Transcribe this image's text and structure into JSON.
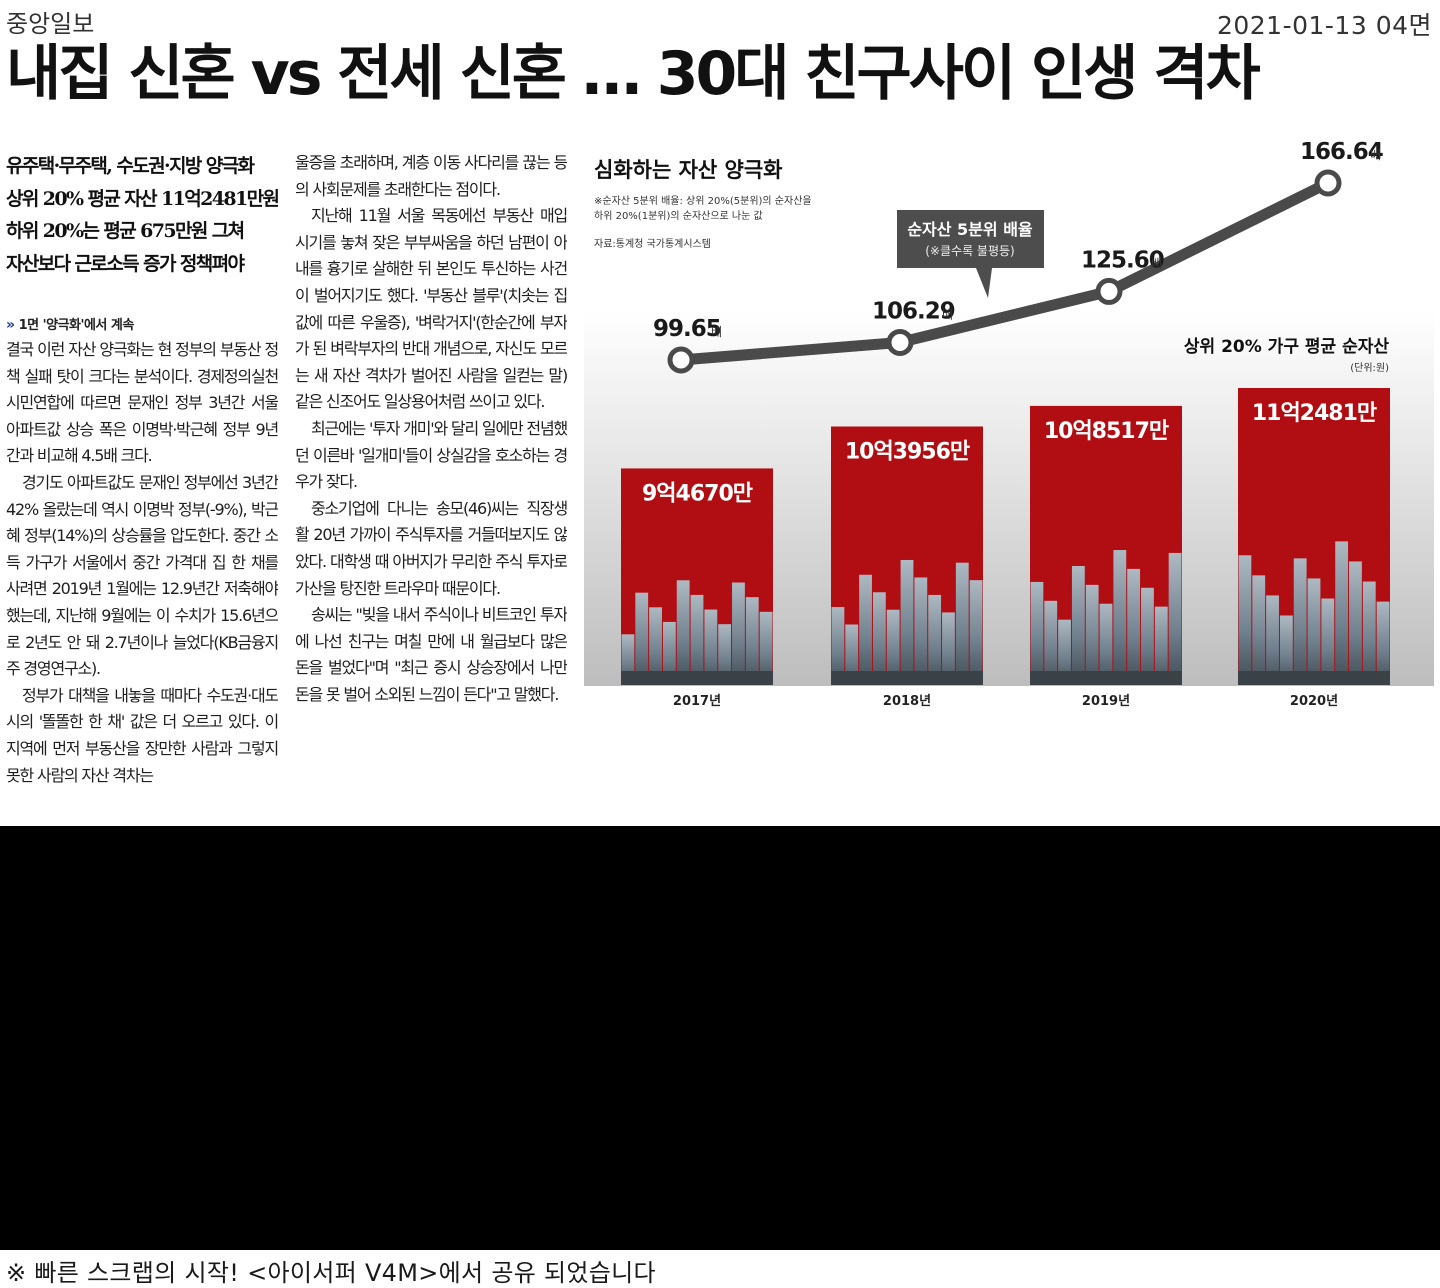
{
  "header": {
    "publisher": "중앙일보",
    "date": "2021-01-13 04면",
    "headline": "내집 신혼 vs 전세 신혼 … 30대 친구사이 인생 격차"
  },
  "article": {
    "subheads": [
      "유주택·무주택, 수도권·지방 양극화",
      "상위 20% 평균 자산 11억2481만원",
      "하위 20%는 평균 675만원 그쳐",
      "자산보다 근로소득 증가 정책펴야"
    ],
    "continued": "1면 '양극화'에서 계속",
    "col1_paragraphs": [
      "결국 이런 자산 양극화는 현 정부의 부동산 정책 실패 탓이 크다는 분석이다. 경제정의실천시민연합에 따르면 문재인 정부 3년간 서울 아파트값 상승 폭은 이명박·박근혜 정부 9년간과 비교해 4.5배 크다.",
      "경기도 아파트값도 문재인 정부에선 3년간 42% 올랐는데 역시 이명박 정부(-9%), 박근혜 정부(14%)의 상승률을 압도한다. 중간 소득 가구가 서울에서 중간 가격대 집 한 채를 사려면 2019년 1월에는 12.9년간 저축해야 했는데, 지난해 9월에는 이 수치가 15.6년으로 2년도 안 돼 2.7년이나 늘었다(KB금융지주 경영연구소).",
      "정부가 대책을 내놓을 때마다 수도권·대도시의 '똘똘한 한 채' 값은 더 오르고 있다. 이 지역에 먼저 부동산을 장만한 사람과 그렇지 못한 사람의 자산 격차는"
    ],
    "col2_paragraphs": [
      "울증을 초래하며, 계층 이동 사다리를 끊는 등의 사회문제를 초래한다는 점이다.",
      "지난해 11월 서울 목동에선 부동산 매입 시기를 놓쳐 잦은 부부싸움을 하던 남편이 아내를 흉기로 살해한 뒤 본인도 투신하는 사건이 벌어지기도 했다. '부동산 블루'(치솟는 집값에 따른 우울증), '벼락거지'(한순간에 부자가 된 벼락부자의 반대 개념으로, 자신도 모르는 새 자산 격차가 벌어진 사람을 일컫는 말) 같은 신조어도 일상용어처럼 쓰이고 있다.",
      "최근에는 '투자 개미'와 달리 일에만 전념했던 이른바 '일개미'들이 상실감을 호소하는 경우가 잦다.",
      "중소기업에 다니는 송모(46)씨는 직장생활 20년 가까이 주식투자를 거들떠보지도 않았다. 대학생 때 아버지가 무리한 주식 투자로 가산을 탕진한 트라우마 때문이다.",
      "송씨는 \"빚을 내서 주식이나 비트코인 투자에 나선 친구는 며칠 만에 내 월급보다 많은 돈을 벌었다\"며 \"최근 증시 상승장에서 나만 돈을 못 벌어 소외된 느낌이 든다\"고 말했다."
    ]
  },
  "infographic": {
    "title": "심화하는 자산 양극화",
    "note_line1": "※순자산 5분위 배율: 상위 20%(5분위)의 순자산을",
    "note_line2": "하위 20%(1분위)의 순자산으로 나눈 값",
    "source": "자료:통계청 국가통계시스템",
    "callout_title": "순자산 5분위 배율",
    "callout_sub": "(※클수록 불평등)",
    "line_unit": "배",
    "bar_title": "상위 20% 가구 평균 순자산",
    "bar_unit": "(단위:원)",
    "colors": {
      "bar": "#b10e14",
      "line": "#4a4a4a",
      "callout": "#4d4d4d"
    }
  },
  "chart_data": {
    "type": "bar",
    "categories": [
      "2017년",
      "2018년",
      "2019년",
      "2020년"
    ],
    "series": [
      {
        "name": "상위 20% 가구 평균 순자산",
        "type": "bar",
        "values": [
          94670,
          103956,
          108517,
          112481
        ],
        "value_labels": [
          "9억4670만",
          "10억3956만",
          "10억8517만",
          "11억2481만"
        ]
      },
      {
        "name": "순자산 5분위 배율",
        "type": "line",
        "values": [
          99.65,
          106.29,
          125.6,
          166.64
        ],
        "value_labels": [
          "99.65",
          "106.29",
          "125.60",
          "166.64"
        ]
      }
    ]
  },
  "footer": {
    "text": "※ 빠른 스크랩의 시작! <아이서퍼 V4M>에서 공유 되었습니다"
  }
}
